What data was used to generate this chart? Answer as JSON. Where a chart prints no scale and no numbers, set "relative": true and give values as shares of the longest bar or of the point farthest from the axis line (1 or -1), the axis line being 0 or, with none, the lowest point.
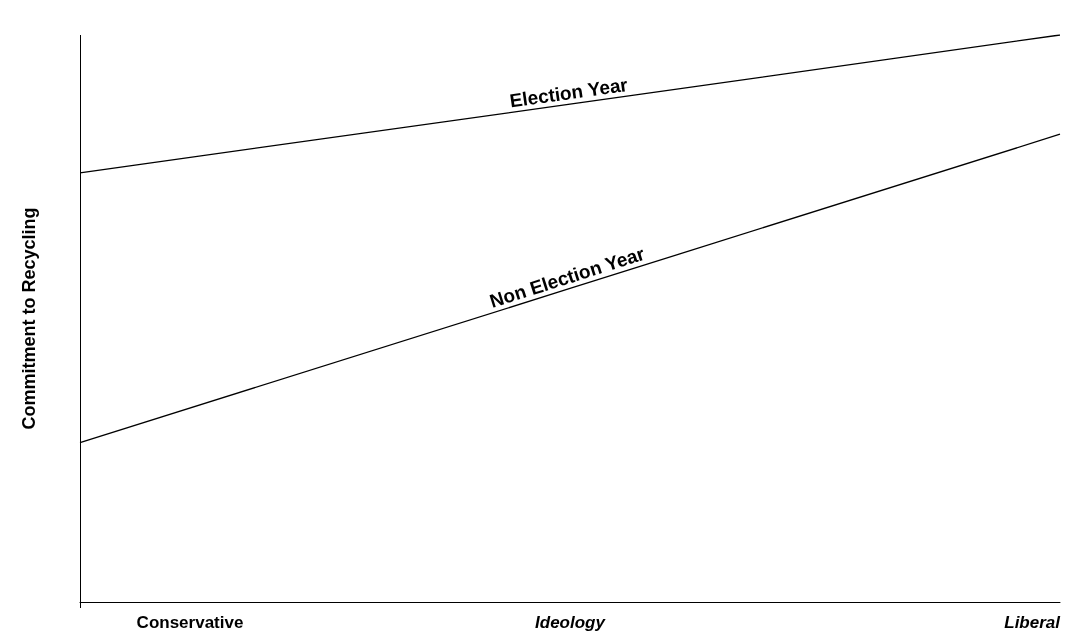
{
  "chart_data": {
    "type": "line",
    "relative": true,
    "xlabel": "Ideology",
    "ylabel": "Commitment to Recycling",
    "categories": [
      null,
      null,
      null
    ],
    "annotations": [
      "Conservative",
      "Liberal"
    ],
    "series": [
      {
        "name": "Election Year",
        "color": "#000000",
        "values": [
          0.757,
          0.878,
          1
        ]
      },
      {
        "name": "Non Election Year",
        "color": "#000000",
        "values": [
          0.281,
          0.553,
          0.825
        ]
      }
    ],
    "marker": "none",
    "grid": false,
    "legend": false
  }
}
